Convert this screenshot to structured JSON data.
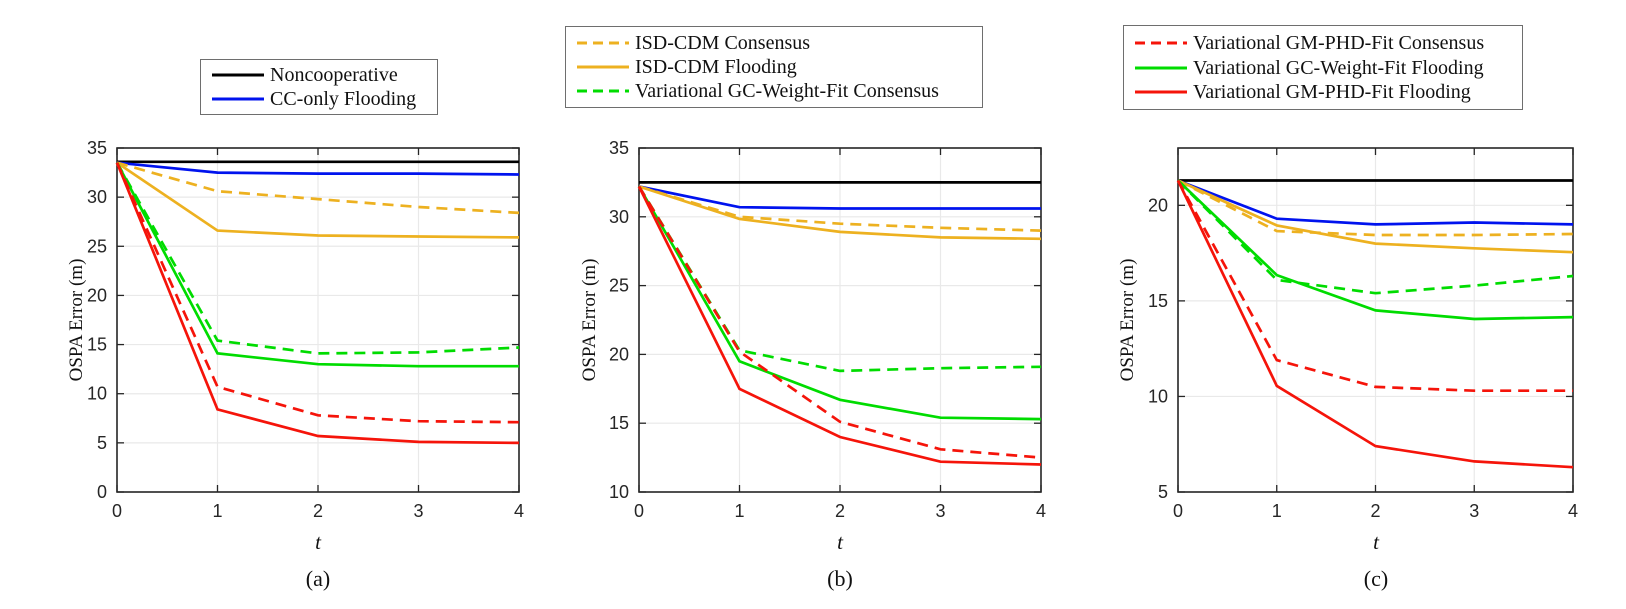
{
  "figure": {
    "background": "#ffffff",
    "axis_color": "#262626",
    "grid_color": "#e9e9e9",
    "palette": {
      "black": "#000000",
      "blue": "#0013ee",
      "orange": "#edb120",
      "green": "#00dc00",
      "red": "#f5140a"
    }
  },
  "legends": [
    {
      "entries": [
        {
          "label": "Noncooperative",
          "color": "black",
          "dash": false
        },
        {
          "label": "CC-only Flooding",
          "color": "blue",
          "dash": false
        }
      ]
    },
    {
      "entries": [
        {
          "label": "ISD-CDM Consensus",
          "color": "orange",
          "dash": true
        },
        {
          "label": "ISD-CDM Flooding",
          "color": "orange",
          "dash": false
        },
        {
          "label": "Variational GC-Weight-Fit Consensus",
          "color": "green",
          "dash": true
        }
      ]
    },
    {
      "entries": [
        {
          "label": "Variational GM-PHD-Fit Consensus",
          "color": "red",
          "dash": true
        },
        {
          "label": "Variational GC-Weight-Fit Flooding",
          "color": "green",
          "dash": false
        },
        {
          "label": "Variational GM-PHD-Fit Flooding",
          "color": "red",
          "dash": false
        }
      ]
    }
  ],
  "chart_data": [
    {
      "type": "line",
      "caption": "(a)",
      "xlabel": "t",
      "ylabel": "OSPA Error (m)",
      "xlim": [
        0,
        4
      ],
      "ylim": [
        0,
        35
      ],
      "xticks": [
        0,
        1,
        2,
        3,
        4
      ],
      "yticks": [
        0,
        5,
        10,
        15,
        20,
        25,
        30,
        35
      ],
      "grid": true,
      "x": [
        0,
        1,
        2,
        3,
        4
      ],
      "series": [
        {
          "key": "noncooperative",
          "name": "Noncooperative",
          "color": "black",
          "dash": false,
          "values": [
            33.6,
            33.6,
            33.6,
            33.6,
            33.6
          ]
        },
        {
          "key": "cc-only-flooding",
          "name": "CC-only Flooding",
          "color": "blue",
          "dash": false,
          "values": [
            33.5,
            32.5,
            32.4,
            32.4,
            32.3
          ]
        },
        {
          "key": "isd-cdm-consensus",
          "name": "ISD-CDM Consensus",
          "color": "orange",
          "dash": true,
          "values": [
            33.5,
            30.6,
            29.8,
            29.0,
            28.4
          ]
        },
        {
          "key": "isd-cdm-flooding",
          "name": "ISD-CDM Flooding",
          "color": "orange",
          "dash": false,
          "values": [
            33.5,
            26.6,
            26.1,
            26.0,
            25.9
          ]
        },
        {
          "key": "gc-weight-fit-consensus",
          "name": "Variational GC-Weight-Fit Consensus",
          "color": "green",
          "dash": true,
          "values": [
            33.5,
            15.4,
            14.1,
            14.2,
            14.7
          ]
        },
        {
          "key": "gc-weight-fit-flooding",
          "name": "Variational GC-Weight-Fit Flooding",
          "color": "green",
          "dash": false,
          "values": [
            33.5,
            14.1,
            13.0,
            12.8,
            12.8
          ]
        },
        {
          "key": "gm-phd-fit-consensus",
          "name": "Variational GM-PHD-Fit Consensus",
          "color": "red",
          "dash": true,
          "values": [
            33.5,
            10.7,
            7.8,
            7.2,
            7.1
          ]
        },
        {
          "key": "gm-phd-fit-flooding",
          "name": "Variational GM-PHD-Fit Flooding",
          "color": "red",
          "dash": false,
          "values": [
            33.5,
            8.4,
            5.7,
            5.1,
            5.0
          ]
        }
      ]
    },
    {
      "type": "line",
      "caption": "(b)",
      "xlabel": "t",
      "ylabel": "OSPA Error (m)",
      "xlim": [
        0,
        4
      ],
      "ylim": [
        10,
        35
      ],
      "xticks": [
        0,
        1,
        2,
        3,
        4
      ],
      "yticks": [
        10,
        15,
        20,
        25,
        30,
        35
      ],
      "grid": true,
      "x": [
        0,
        1,
        2,
        3,
        4
      ],
      "series": [
        {
          "key": "noncooperative",
          "name": "Noncooperative",
          "color": "black",
          "dash": false,
          "values": [
            32.5,
            32.5,
            32.5,
            32.5,
            32.5
          ]
        },
        {
          "key": "cc-only-flooding",
          "name": "CC-only Flooding",
          "color": "blue",
          "dash": false,
          "values": [
            32.2,
            30.7,
            30.6,
            30.6,
            30.6
          ]
        },
        {
          "key": "isd-cdm-consensus",
          "name": "ISD-CDM Consensus",
          "color": "orange",
          "dash": true,
          "values": [
            32.2,
            30.0,
            29.5,
            29.2,
            29.0
          ]
        },
        {
          "key": "isd-cdm-flooding",
          "name": "ISD-CDM Flooding",
          "color": "orange",
          "dash": false,
          "values": [
            32.2,
            29.85,
            28.9,
            28.5,
            28.4
          ]
        },
        {
          "key": "gc-weight-fit-consensus",
          "name": "Variational GC-Weight-Fit Consensus",
          "color": "green",
          "dash": true,
          "values": [
            32.2,
            20.3,
            18.8,
            19.0,
            19.1
          ]
        },
        {
          "key": "gc-weight-fit-flooding",
          "name": "Variational GC-Weight-Fit Flooding",
          "color": "green",
          "dash": false,
          "values": [
            32.2,
            19.5,
            16.7,
            15.4,
            15.3
          ]
        },
        {
          "key": "gm-phd-fit-consensus",
          "name": "Variational GM-PHD-Fit Consensus",
          "color": "red",
          "dash": true,
          "values": [
            32.2,
            20.2,
            15.1,
            13.1,
            12.5
          ]
        },
        {
          "key": "gm-phd-fit-flooding",
          "name": "Variational GM-PHD-Fit Flooding",
          "color": "red",
          "dash": false,
          "values": [
            32.2,
            17.5,
            14.0,
            12.2,
            12.0
          ]
        }
      ]
    },
    {
      "type": "line",
      "caption": "(c)",
      "xlabel": "t",
      "ylabel": "OSPA Error (m)",
      "xlim": [
        0,
        4
      ],
      "ylim": [
        5,
        23
      ],
      "xticks": [
        0,
        1,
        2,
        3,
        4
      ],
      "yticks": [
        5,
        10,
        15,
        20
      ],
      "grid": true,
      "x": [
        0,
        1,
        2,
        3,
        4
      ],
      "series": [
        {
          "key": "noncooperative",
          "name": "Noncooperative",
          "color": "black",
          "dash": false,
          "values": [
            21.3,
            21.3,
            21.3,
            21.3,
            21.3
          ]
        },
        {
          "key": "cc-only-flooding",
          "name": "CC-only Flooding",
          "color": "blue",
          "dash": false,
          "values": [
            21.3,
            19.3,
            19.0,
            19.1,
            19.0
          ]
        },
        {
          "key": "isd-cdm-consensus",
          "name": "ISD-CDM Consensus",
          "color": "orange",
          "dash": true,
          "values": [
            21.3,
            18.65,
            18.45,
            18.45,
            18.5
          ]
        },
        {
          "key": "isd-cdm-flooding",
          "name": "ISD-CDM Flooding",
          "color": "orange",
          "dash": false,
          "values": [
            21.3,
            18.95,
            18.0,
            17.75,
            17.55
          ]
        },
        {
          "key": "gc-weight-fit-consensus",
          "name": "Variational GC-Weight-Fit Consensus",
          "color": "green",
          "dash": true,
          "values": [
            21.3,
            16.1,
            15.4,
            15.8,
            16.3
          ]
        },
        {
          "key": "gc-weight-fit-flooding",
          "name": "Variational GC-Weight-Fit Flooding",
          "color": "green",
          "dash": false,
          "values": [
            21.3,
            16.35,
            14.5,
            14.05,
            14.15
          ]
        },
        {
          "key": "gm-phd-fit-consensus",
          "name": "Variational GM-PHD-Fit Consensus",
          "color": "red",
          "dash": true,
          "values": [
            21.3,
            11.9,
            10.5,
            10.3,
            10.3
          ]
        },
        {
          "key": "gm-phd-fit-flooding",
          "name": "Variational GM-PHD-Fit Flooding",
          "color": "red",
          "dash": false,
          "values": [
            21.3,
            10.55,
            7.4,
            6.6,
            6.3
          ]
        }
      ]
    }
  ]
}
